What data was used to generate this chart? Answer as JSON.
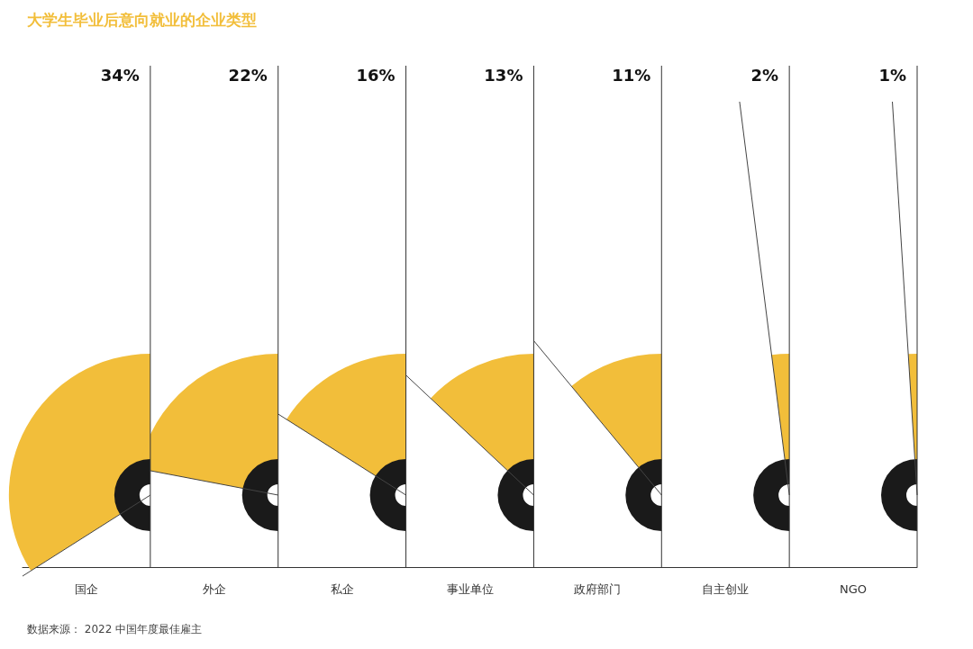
{
  "chart_data": {
    "type": "other",
    "title": "大学生毕业后意向就业的企业类型",
    "categories": [
      "国企",
      "外企",
      "私企",
      "事业单位",
      "政府部门",
      "自主创业",
      "NGO"
    ],
    "values": [
      34,
      22,
      16,
      13,
      11,
      2,
      1
    ],
    "value_labels": [
      "34%",
      "22%",
      "16%",
      "13%",
      "11%",
      "2%",
      "1%"
    ],
    "color": "#f2be3a",
    "annotations": [
      "数据来源： 2022 中国年度最佳雇主"
    ]
  }
}
